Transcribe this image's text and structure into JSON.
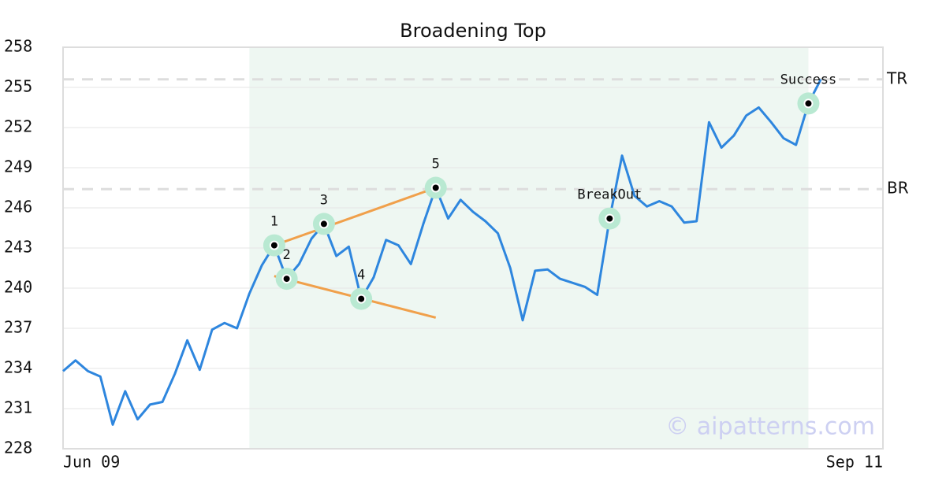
{
  "chart_data": {
    "type": "line",
    "title": "Broadening Top",
    "categories": [
      "Jun 09",
      null,
      null,
      null,
      null,
      null,
      null,
      null,
      null,
      null,
      null,
      null,
      null,
      null,
      null,
      null,
      null,
      null,
      null,
      null,
      null,
      null,
      null,
      null,
      null,
      null,
      null,
      null,
      null,
      null,
      null,
      null,
      null,
      null,
      null,
      null,
      null,
      null,
      null,
      null,
      null,
      null,
      null,
      null,
      null,
      null,
      null,
      null,
      null,
      null,
      null,
      null,
      null,
      null,
      null,
      null,
      null,
      null,
      null,
      null,
      null,
      null,
      null,
      null,
      null,
      null,
      "Sep 11"
    ],
    "values": [
      233.8,
      234.6,
      233.8,
      233.4,
      229.8,
      232.3,
      230.2,
      231.3,
      231.5,
      233.6,
      236.1,
      233.9,
      236.9,
      237.4,
      237.0,
      239.6,
      241.7,
      243.2,
      240.7,
      241.8,
      243.7,
      244.8,
      242.4,
      243.1,
      239.2,
      240.8,
      243.6,
      243.2,
      241.8,
      244.8,
      247.5,
      245.2,
      246.6,
      245.7,
      245.0,
      244.1,
      241.5,
      237.6,
      241.3,
      241.4,
      240.7,
      240.4,
      240.1,
      239.5,
      245.2,
      249.9,
      246.9,
      246.1,
      246.5,
      246.1,
      244.9,
      245.0,
      252.4,
      250.5,
      251.4,
      252.9,
      253.5,
      252.4,
      251.2,
      250.7,
      253.8,
      255.6,
      null,
      null,
      null,
      null,
      null
    ],
    "color": "#2e86de",
    "ylim": [
      228,
      258
    ],
    "yticks": [
      228,
      231,
      234,
      237,
      240,
      243,
      246,
      249,
      252,
      255,
      258
    ],
    "grid": true,
    "shade": [
      15,
      60
    ],
    "levels": [
      {
        "label": "TR",
        "value": 255.6
      },
      {
        "label": "BR",
        "value": 247.4
      }
    ],
    "trendlines": [
      {
        "x": [
          17,
          30
        ],
        "values": [
          243.2,
          247.5
        ],
        "color": "#f0a04b"
      },
      {
        "x": [
          17,
          30
        ],
        "values": [
          240.9,
          237.8
        ],
        "color": "#f0a04b"
      }
    ],
    "annotations": [
      {
        "label": "1",
        "index": 17
      },
      {
        "label": "2",
        "index": 18
      },
      {
        "label": "3",
        "index": 21
      },
      {
        "label": "4",
        "index": 24
      },
      {
        "label": "5",
        "index": 30
      },
      {
        "label": "BreakOut",
        "index": 44
      },
      {
        "label": "Success",
        "index": 60
      }
    ],
    "watermark": "© aipatterns.com"
  }
}
